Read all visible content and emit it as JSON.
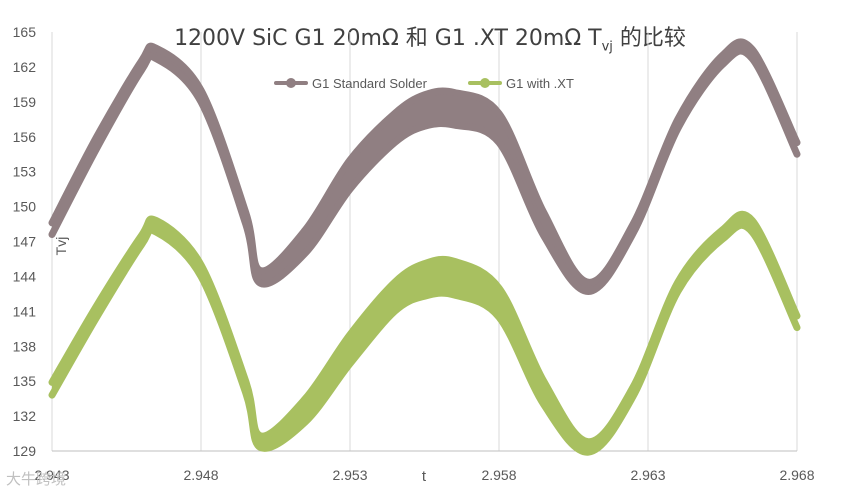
{
  "chart_data": {
    "type": "line",
    "title": "1200V SiC G1 20mΩ 和 G1 .XT 20mΩ T",
    "title_subscript": "vj",
    "title_suffix": " 的比较",
    "xlabel": "t",
    "ylabel": "Tvj",
    "xlim": [
      2.943,
      2.968
    ],
    "ylim": [
      129,
      165
    ],
    "x_ticks": [
      "2.943",
      "2.948",
      "2.953",
      "2.958",
      "2.963",
      "2.968"
    ],
    "y_ticks": [
      "129",
      "132",
      "135",
      "138",
      "141",
      "144",
      "147",
      "150",
      "153",
      "156",
      "159",
      "162",
      "165"
    ],
    "grid": "vertical",
    "legend_position": "top-center",
    "series": [
      {
        "name": "G1 Standard Solder",
        "color": "#907f82",
        "x": [
          2.943,
          2.9445,
          2.946,
          2.9465,
          2.948,
          2.9495,
          2.95,
          2.9515,
          2.953,
          2.9545,
          2.9555,
          2.9565,
          2.958,
          2.9595,
          2.961,
          2.9625,
          2.964,
          2.9655,
          2.9665,
          2.968
        ],
        "upper": [
          148.6,
          156.0,
          162.5,
          163.6,
          160.0,
          149.5,
          144.5,
          148.0,
          154.0,
          158.0,
          159.6,
          159.8,
          158.0,
          149.5,
          143.5,
          148.5,
          157.5,
          163.0,
          163.5,
          155.5
        ],
        "lower": [
          147.6,
          155.0,
          161.7,
          162.7,
          159.0,
          148.5,
          143.4,
          146.0,
          151.5,
          155.5,
          156.9,
          157.0,
          155.5,
          147.5,
          142.7,
          147.7,
          156.7,
          162.2,
          162.7,
          154.5
        ]
      },
      {
        "name": "G1 with .XT",
        "color": "#a8c060",
        "x": [
          2.943,
          2.9445,
          2.946,
          2.9465,
          2.948,
          2.9495,
          2.95,
          2.9515,
          2.953,
          2.9545,
          2.9555,
          2.9565,
          2.958,
          2.9595,
          2.961,
          2.9625,
          2.964,
          2.9655,
          2.9665,
          2.968
        ],
        "upper": [
          134.9,
          141.5,
          147.5,
          148.8,
          145.0,
          135.0,
          130.3,
          133.5,
          139.0,
          143.5,
          145.1,
          145.3,
          143.0,
          135.0,
          129.8,
          134.5,
          143.5,
          148.0,
          148.8,
          140.6
        ],
        "lower": [
          133.8,
          140.5,
          146.7,
          147.8,
          144.0,
          134.0,
          129.3,
          131.5,
          136.5,
          141.0,
          142.3,
          142.4,
          140.5,
          133.0,
          128.9,
          133.7,
          142.7,
          147.2,
          147.8,
          139.6
        ]
      }
    ]
  },
  "watermark": "大牛跨境"
}
